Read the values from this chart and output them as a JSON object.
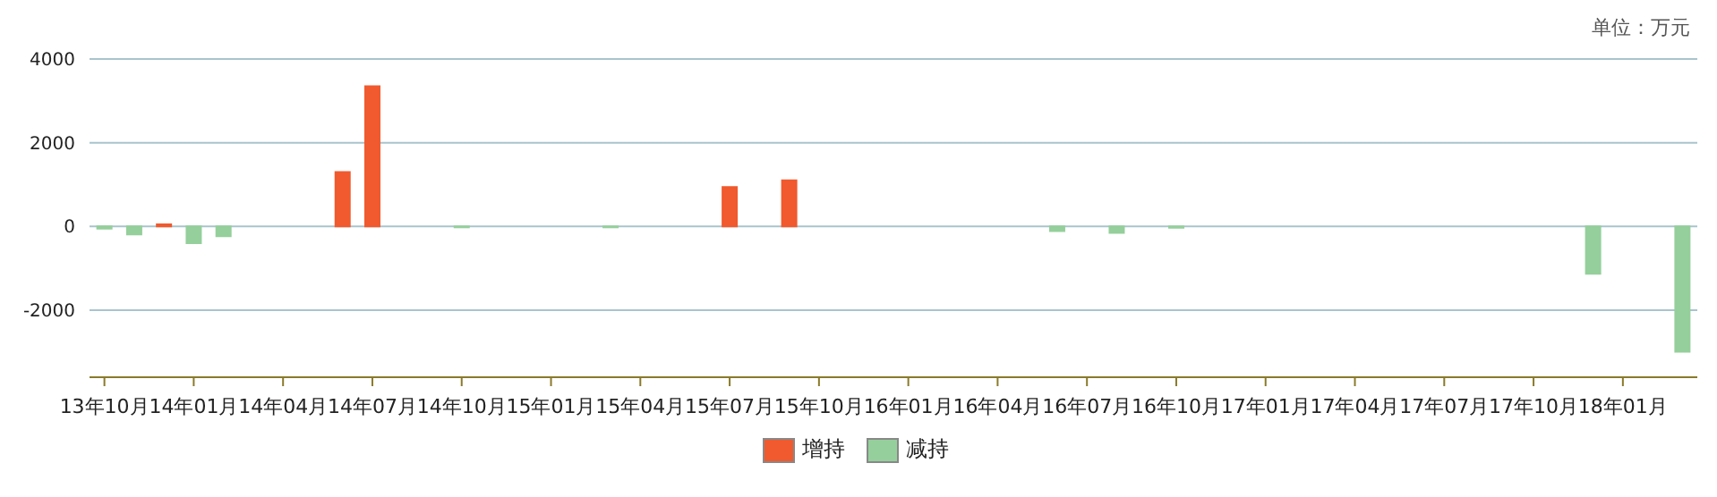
{
  "chart_data": {
    "type": "bar",
    "annotations": [
      "单位：万元"
    ],
    "categories": [
      "13年10月",
      null,
      null,
      "14年01月",
      null,
      null,
      "14年04月",
      null,
      null,
      "14年07月",
      null,
      null,
      "14年10月",
      null,
      null,
      "15年01月",
      null,
      null,
      "15年04月",
      null,
      null,
      "15年07月",
      null,
      null,
      "15年10月",
      null,
      null,
      "16年01月",
      null,
      null,
      "16年04月",
      null,
      null,
      "16年07月",
      null,
      null,
      "16年10月",
      null,
      null,
      "17年01月",
      null,
      null,
      "17年04月",
      null,
      null,
      "17年07月",
      null,
      null,
      "17年10月",
      null,
      null,
      "18年01月",
      null,
      null
    ],
    "series": [
      {
        "name": "增持",
        "color": "#f05a2e",
        "values": [
          null,
          null,
          50,
          null,
          null,
          null,
          null,
          null,
          1300,
          3350,
          null,
          null,
          null,
          null,
          null,
          null,
          null,
          null,
          null,
          null,
          null,
          940,
          null,
          1100,
          null,
          null,
          null,
          null,
          null,
          null,
          null,
          null,
          null,
          null,
          null,
          null,
          null,
          null,
          null,
          null,
          null,
          null,
          null,
          null,
          null,
          null,
          null,
          null,
          null,
          null,
          null,
          null,
          null,
          null
        ]
      },
      {
        "name": "减持",
        "color": "#95cf9b",
        "values": [
          -50,
          -190,
          null,
          -400,
          -230,
          null,
          null,
          null,
          null,
          null,
          null,
          null,
          -20,
          null,
          null,
          null,
          null,
          -20,
          null,
          null,
          null,
          null,
          null,
          null,
          null,
          null,
          null,
          null,
          null,
          null,
          null,
          null,
          -110,
          null,
          -150,
          null,
          -30,
          null,
          null,
          null,
          null,
          null,
          null,
          null,
          null,
          null,
          null,
          null,
          null,
          null,
          -1130,
          null,
          null,
          -2990
        ]
      }
    ],
    "stacked": true,
    "ylim": [
      -3600,
      4000
    ],
    "yticks": [
      4000,
      2000,
      0,
      -2000
    ],
    "grid": "y",
    "legend": "bottom"
  }
}
